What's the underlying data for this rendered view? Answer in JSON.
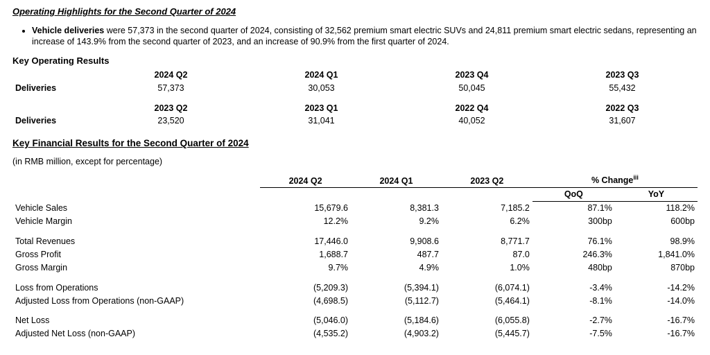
{
  "operating_highlights": {
    "title": "Operating Highlights for the Second Quarter of 2024",
    "bullet": {
      "lead": "Vehicle deliveries",
      "rest": " were 57,373 in the second quarter of 2024, consisting of 32,562 premium smart electric SUVs and 24,811 premium smart electric sedans, representing an increase of 143.9% from the second quarter of 2023, and an increase of 90.9% from the first quarter of 2024."
    },
    "key_op_title": "Key Operating Results",
    "row_label": "Deliveries",
    "blocks": [
      {
        "headers": [
          "2024 Q2",
          "2024 Q1",
          "2023 Q4",
          "2023 Q3"
        ],
        "values": [
          "57,373",
          "30,053",
          "50,045",
          "55,432"
        ]
      },
      {
        "headers": [
          "2023 Q2",
          "2023 Q1",
          "2022 Q4",
          "2022 Q3"
        ],
        "values": [
          "23,520",
          "31,041",
          "40,052",
          "31,607"
        ]
      }
    ]
  },
  "financial": {
    "title_a": "Key Financial Results",
    "title_b": " for the Second Quarter of 2024",
    "note": "(in RMB million, except for percentage)",
    "cols": [
      "2024 Q2",
      "2024 Q1",
      "2023 Q2"
    ],
    "change_hdr": "% Change",
    "change_sup": "iii",
    "change_sub": [
      "QoQ",
      "YoY"
    ],
    "groups": [
      [
        {
          "l": "Vehicle Sales",
          "v": [
            "15,679.6",
            "8,381.3",
            "7,185.2",
            "87.1%",
            "118.2%"
          ]
        },
        {
          "l": "Vehicle Margin",
          "v": [
            "12.2%",
            "9.2%",
            "6.2%",
            "300bp",
            "600bp"
          ]
        }
      ],
      [
        {
          "l": "Total Revenues",
          "v": [
            "17,446.0",
            "9,908.6",
            "8,771.7",
            "76.1%",
            "98.9%"
          ]
        },
        {
          "l": "Gross Profit",
          "v": [
            "1,688.7",
            "487.7",
            "87.0",
            "246.3%",
            "1,841.0%"
          ]
        },
        {
          "l": "Gross Margin",
          "v": [
            "9.7%",
            "4.9%",
            "1.0%",
            "480bp",
            "870bp"
          ]
        }
      ],
      [
        {
          "l": "Loss from Operations",
          "v": [
            "(5,209.3)",
            "(5,394.1)",
            "(6,074.1)",
            "-3.4%",
            "-14.2%"
          ]
        },
        {
          "l": "Adjusted Loss from Operations (non-GAAP)",
          "v": [
            "(4,698.5)",
            "(5,112.7)",
            "(5,464.1)",
            "-8.1%",
            "-14.0%"
          ]
        }
      ],
      [
        {
          "l": "Net Loss",
          "v": [
            "(5,046.0)",
            "(5,184.6)",
            "(6,055.8)",
            "-2.7%",
            "-16.7%"
          ]
        },
        {
          "l": "Adjusted Net Loss (non-GAAP)",
          "v": [
            "(4,535.2)",
            "(4,903.2)",
            "(5,445.7)",
            "-7.5%",
            "-16.7%"
          ]
        }
      ]
    ]
  }
}
